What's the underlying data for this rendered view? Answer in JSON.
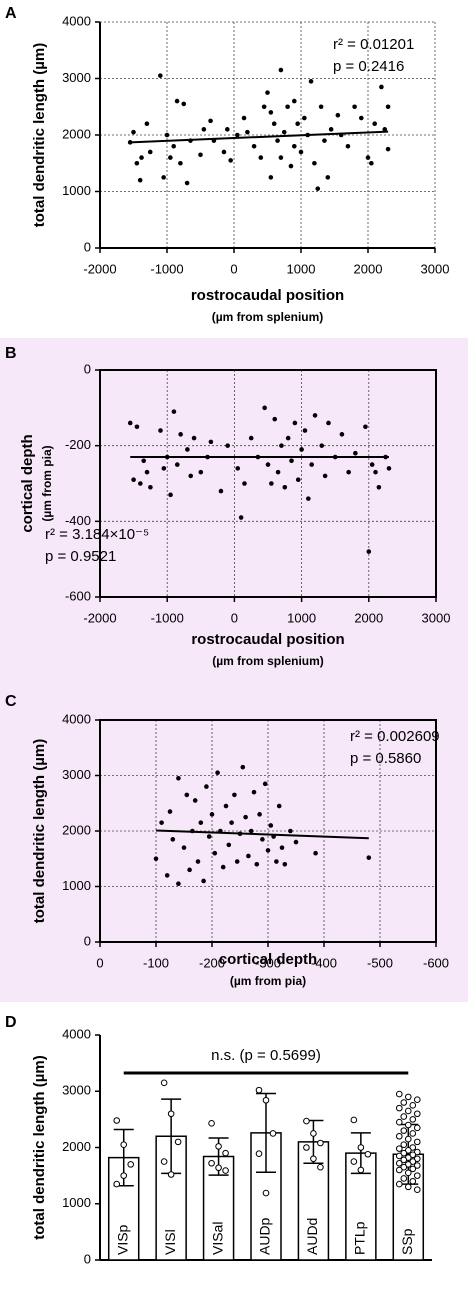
{
  "chart_data": [
    {
      "type": "scatter",
      "label": "A",
      "ylabel": "total dendritic length (µm)",
      "xlabel": "rostrocaudal position",
      "xlabel_sub": "(µm from splenium)",
      "annotations": [
        "r² = 0.01201",
        "p = 0.2416"
      ],
      "xlim": [
        -2000,
        3000
      ],
      "xticks": [
        -2000,
        -1000,
        0,
        1000,
        2000,
        3000
      ],
      "ylim": [
        0,
        4000
      ],
      "yticks": [
        0,
        1000,
        2000,
        3000,
        4000
      ],
      "grid": true,
      "box": false,
      "color": "#000000",
      "x": [
        -1550,
        -1500,
        -1450,
        -1400,
        -1380,
        -1300,
        -1250,
        -1100,
        -1050,
        -1000,
        -950,
        -900,
        -850,
        -800,
        -750,
        -700,
        -650,
        -500,
        -450,
        -350,
        -300,
        -150,
        -100,
        -50,
        50,
        150,
        200,
        300,
        400,
        450,
        500,
        550,
        550,
        600,
        650,
        700,
        700,
        750,
        800,
        850,
        900,
        900,
        950,
        1000,
        1050,
        1100,
        1150,
        1200,
        1250,
        1300,
        1350,
        1400,
        1450,
        1550,
        1600,
        1700,
        1800,
        1900,
        2000,
        2050,
        2100,
        2200,
        2250,
        2300,
        2300
      ],
      "values": [
        1870,
        2050,
        1500,
        1200,
        1600,
        2200,
        1700,
        3050,
        1250,
        2000,
        1600,
        1800,
        2600,
        1500,
        2550,
        1150,
        1900,
        1650,
        2100,
        2250,
        1900,
        1700,
        2100,
        1550,
        2000,
        2300,
        2050,
        1800,
        1600,
        2500,
        2750,
        2400,
        1250,
        2200,
        1900,
        3150,
        1600,
        2050,
        2500,
        1450,
        2600,
        1800,
        2200,
        1700,
        2300,
        2000,
        2950,
        1500,
        1050,
        2500,
        1900,
        1250,
        2100,
        2350,
        2000,
        1800,
        2500,
        2300,
        1600,
        1500,
        2200,
        2850,
        2100,
        1750,
        2500
      ],
      "fit": {
        "x": [
          -1550,
          2300
        ],
        "values": [
          1870,
          2060
        ]
      }
    },
    {
      "type": "scatter",
      "label": "B",
      "ylabel": "cortical depth",
      "ylabel_sub": "(µm from pia)",
      "xlabel": "rostrocaudal position",
      "xlabel_sub": "(µm from splenium)",
      "annotations": [
        "r² = 3.184×10⁻⁵",
        "p = 0.9521"
      ],
      "xlim": [
        -2000,
        3000
      ],
      "xticks": [
        -2000,
        -1000,
        0,
        1000,
        2000,
        3000
      ],
      "ylim": [
        -600,
        0
      ],
      "yticks": [
        -600,
        -400,
        -200,
        0
      ],
      "grid": true,
      "box": true,
      "color": "#000000",
      "x": [
        -1550,
        -1500,
        -1450,
        -1400,
        -1350,
        -1300,
        -1250,
        -1100,
        -1050,
        -1000,
        -950,
        -900,
        -850,
        -800,
        -700,
        -650,
        -600,
        -500,
        -400,
        -350,
        -200,
        -100,
        50,
        100,
        150,
        250,
        350,
        450,
        500,
        550,
        600,
        650,
        700,
        750,
        800,
        850,
        900,
        950,
        1000,
        1050,
        1100,
        1150,
        1200,
        1300,
        1350,
        1400,
        1500,
        1600,
        1700,
        1800,
        1950,
        2000,
        2050,
        2100,
        2150,
        2250,
        2300
      ],
      "values": [
        -140,
        -290,
        -150,
        -300,
        -240,
        -270,
        -310,
        -160,
        -260,
        -230,
        -330,
        -110,
        -250,
        -170,
        -210,
        -280,
        -180,
        -270,
        -230,
        -190,
        -320,
        -200,
        -260,
        -390,
        -300,
        -180,
        -230,
        -100,
        -250,
        -300,
        -130,
        -270,
        -200,
        -310,
        -180,
        -240,
        -140,
        -290,
        -210,
        -160,
        -340,
        -250,
        -120,
        -200,
        -280,
        -140,
        -230,
        -170,
        -270,
        -220,
        -150,
        -480,
        -250,
        -270,
        -310,
        -230,
        -260
      ],
      "fit": {
        "x": [
          -1550,
          2300
        ],
        "values": [
          -230,
          -230
        ]
      }
    },
    {
      "type": "scatter",
      "label": "C",
      "ylabel": "total dendritic length (µm)",
      "xlabel": "cortical depth",
      "xlabel_sub": "(µm from pia)",
      "annotations": [
        "r² = 0.002609",
        "p = 0.5860"
      ],
      "xlim": [
        0,
        -600
      ],
      "xticks": [
        0,
        -100,
        -200,
        -300,
        -400,
        -500,
        -600
      ],
      "ylim": [
        0,
        4000
      ],
      "yticks": [
        0,
        1000,
        2000,
        3000,
        4000
      ],
      "grid": true,
      "box": true,
      "color": "#000000",
      "x": [
        -100,
        -110,
        -120,
        -125,
        -130,
        -140,
        -140,
        -150,
        -155,
        -160,
        -165,
        -170,
        -175,
        -180,
        -185,
        -190,
        -195,
        -200,
        -205,
        -210,
        -215,
        -220,
        -225,
        -230,
        -235,
        -240,
        -245,
        -250,
        -255,
        -260,
        -265,
        -270,
        -275,
        -280,
        -285,
        -290,
        -295,
        -300,
        -305,
        -310,
        -315,
        -320,
        -325,
        -330,
        -340,
        -350,
        -385,
        -480
      ],
      "values": [
        1500,
        2150,
        1200,
        2350,
        1850,
        2950,
        1050,
        1700,
        2650,
        1300,
        2000,
        2550,
        1450,
        2150,
        1100,
        2800,
        1900,
        2300,
        1600,
        3050,
        2000,
        1350,
        2450,
        1750,
        2150,
        2650,
        1450,
        1950,
        3150,
        2250,
        1550,
        2000,
        2700,
        1400,
        2300,
        1850,
        2850,
        1650,
        2100,
        1900,
        1450,
        2450,
        1700,
        1400,
        2000,
        1800,
        1600,
        1520
      ],
      "fit": {
        "x": [
          -100,
          -480
        ],
        "values": [
          2010,
          1870
        ]
      }
    },
    {
      "type": "bar",
      "label": "D",
      "ylabel": "total dendritic length (µm)",
      "annotation": "n.s. (p = 0.5699)",
      "categories": [
        "VISp",
        "VISl",
        "VISal",
        "AUDp",
        "AUDd",
        "PTLp",
        "SSp"
      ],
      "values": [
        1820,
        2200,
        1840,
        2260,
        2100,
        1900,
        1880
      ],
      "errors": [
        500,
        660,
        330,
        700,
        380,
        360,
        530
      ],
      "points": [
        [
          2480,
          2050,
          1700,
          1350,
          1500
        ],
        [
          3150,
          2600,
          2100,
          1750,
          1520
        ],
        [
          2430,
          2020,
          1900,
          1720,
          1640,
          1590
        ],
        [
          3020,
          2840,
          2250,
          1890,
          1190
        ],
        [
          2470,
          2250,
          2080,
          2000,
          1800,
          1650
        ],
        [
          2490,
          2000,
          1880,
          1750,
          1600
        ],
        [
          2950,
          2900,
          2850,
          2800,
          2750,
          2700,
          2650,
          2600,
          2550,
          2500,
          2450,
          2400,
          2350,
          2300,
          2250,
          2200,
          2150,
          2100,
          2050,
          2000,
          1980,
          1950,
          1920,
          1900,
          1870,
          1850,
          1820,
          1800,
          1780,
          1750,
          1720,
          1700,
          1680,
          1650,
          1620,
          1600,
          1550,
          1500,
          1450,
          1400,
          1350,
          1300,
          1250
        ]
      ],
      "ylim": [
        0,
        4000
      ],
      "yticks": [
        0,
        1000,
        2000,
        3000,
        4000
      ],
      "color": "#ffffff"
    }
  ]
}
